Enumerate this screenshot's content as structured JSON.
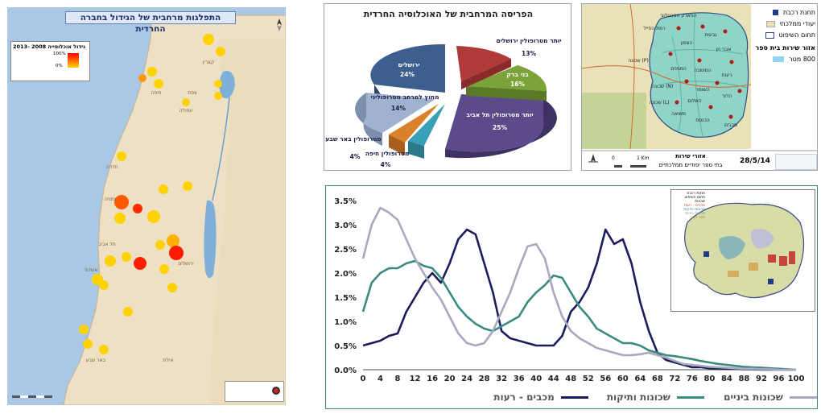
{
  "israel_map": {
    "title": "התפלגות מרחבית של הגידול בחברה החרדית",
    "legend_title": "גידול אוכלוסייה 2008 -2013",
    "legend_max": "100%",
    "legend_min": "0%",
    "cities": [
      "קצרין",
      "צפת",
      "חיפה",
      "עפולה",
      "חדרה",
      "נתניה",
      "תל אביב",
      "ירושלים",
      "אשדוד",
      "באר שבע",
      "אילת"
    ]
  },
  "pie_chart": {
    "title": "הפריסה המרחבית של האוכלוסיה החרדית",
    "slices": [
      {
        "label": "יותר מטרופולין ירושלים",
        "value": 13,
        "color": "#b03a3a"
      },
      {
        "label": "בני ברק",
        "value": 16,
        "color": "#7aa33a"
      },
      {
        "label": "יותר מטרופולין תל אביב",
        "value": 25,
        "color": "#5c4a8a"
      },
      {
        "label": "מטרופולין חיפה",
        "value": 4,
        "color": "#3aa0b8"
      },
      {
        "label": "מטרופולין באר שבע",
        "value": 4,
        "color": "#d9822b"
      },
      {
        "label": "מחוץ למרחב מטרופוליני",
        "value": 14,
        "color": "#9fb3cf"
      },
      {
        "label": "ירושלים",
        "value": 24,
        "color": "#3d5f8f"
      }
    ]
  },
  "neighborhood_map": {
    "legend": [
      {
        "label": "תחנת רכבת",
        "icon": "train-station-icon"
      },
      {
        "label": "יעודי ממלכתי",
        "icon": "state-zone-icon"
      },
      {
        "label": "תחום השיפוט",
        "icon": "jurisdiction-icon"
      },
      {
        "label": "אזור שירות בית ספר",
        "icon": "school-zone-icon"
      },
      {
        "label": "800 מטר",
        "icon": "radius-icon"
      }
    ],
    "footer_title": "אזורי שירות",
    "footer_sub": "בתי ספר יסודיים ממלכתיים",
    "date": "28/5/14",
    "scale_start": "0",
    "scale_end": "1 Km",
    "labels": [
      "הפארק הטכנולוגי",
      "רמת החייל",
      "גבעות",
      "הצפון",
      "אבני חן",
      "המושבה",
      "רעות",
      "המגינים",
      "שכונה (N)",
      "שכונה (L)",
      "שכונה (P)",
      "הדור",
      "השומר",
      "השלום",
      "משואה",
      "הכנסת",
      "מכבים"
    ]
  },
  "chart_data": {
    "type": "line",
    "x": [
      0,
      2,
      4,
      6,
      8,
      10,
      12,
      14,
      16,
      18,
      20,
      22,
      24,
      26,
      28,
      30,
      32,
      34,
      36,
      38,
      40,
      42,
      44,
      46,
      48,
      50,
      52,
      54,
      56,
      58,
      60,
      62,
      64,
      66,
      68,
      70,
      72,
      74,
      76,
      78,
      80,
      82,
      84,
      86,
      88,
      90,
      92,
      94,
      96,
      98,
      100
    ],
    "xticks": [
      "0",
      "4",
      "8",
      "12",
      "16",
      "20",
      "24",
      "28",
      "32",
      "36",
      "40",
      "44",
      "48",
      "52",
      "56",
      "60",
      "64",
      "68",
      "72",
      "76",
      "80",
      "84",
      "88",
      "92",
      "96",
      "100"
    ],
    "yticks": [
      "0.0%",
      "0.5%",
      "1.0%",
      "1.5%",
      "2.0%",
      "2.5%",
      "3.0%",
      "3.5%"
    ],
    "ylim": [
      0,
      3.5
    ],
    "xlim": [
      0,
      100
    ],
    "series": [
      {
        "name": "מכבים - רעות",
        "color": "#1c1c5c",
        "values": [
          0.5,
          0.55,
          0.6,
          0.7,
          0.75,
          1.2,
          1.5,
          1.8,
          2.0,
          1.8,
          2.2,
          2.7,
          2.9,
          2.8,
          2.2,
          1.6,
          0.8,
          0.65,
          0.6,
          0.55,
          0.5,
          0.5,
          0.5,
          0.7,
          1.2,
          1.4,
          1.7,
          2.2,
          2.9,
          2.6,
          2.7,
          2.2,
          1.4,
          0.8,
          0.35,
          0.2,
          0.15,
          0.1,
          0.05,
          0.05,
          0.03,
          0.03,
          0.02,
          0.02,
          0.01,
          0.01,
          0.0,
          0.0,
          0.0,
          0.0,
          0.0
        ]
      },
      {
        "name": "שכונות ותיקות",
        "color": "#3a8a80",
        "values": [
          1.2,
          1.8,
          2.0,
          2.1,
          2.1,
          2.2,
          2.25,
          2.15,
          2.1,
          1.9,
          1.6,
          1.3,
          1.1,
          0.95,
          0.85,
          0.8,
          0.9,
          1.0,
          1.1,
          1.4,
          1.6,
          1.75,
          1.95,
          1.9,
          1.6,
          1.3,
          1.1,
          0.85,
          0.75,
          0.65,
          0.55,
          0.55,
          0.5,
          0.4,
          0.35,
          0.3,
          0.28,
          0.25,
          0.22,
          0.18,
          0.15,
          0.12,
          0.1,
          0.08,
          0.06,
          0.05,
          0.04,
          0.03,
          0.02,
          0.01,
          0.0
        ]
      },
      {
        "name": "שכונות ביניים",
        "color": "#a8a8c0",
        "values": [
          2.3,
          3.0,
          3.35,
          3.25,
          3.1,
          2.7,
          2.3,
          2.0,
          1.7,
          1.45,
          1.1,
          0.75,
          0.55,
          0.5,
          0.55,
          0.8,
          1.2,
          1.6,
          2.1,
          2.55,
          2.6,
          2.3,
          1.6,
          1.1,
          0.8,
          0.65,
          0.55,
          0.45,
          0.4,
          0.35,
          0.3,
          0.3,
          0.32,
          0.35,
          0.3,
          0.25,
          0.18,
          0.12,
          0.1,
          0.08,
          0.06,
          0.05,
          0.04,
          0.03,
          0.02,
          0.02,
          0.01,
          0.01,
          0.0,
          0.0,
          0.0
        ]
      }
    ]
  },
  "inset_map": {
    "legend": [
      "תחנת רכבת",
      "תחום השיפוט",
      "שכונות",
      "מכבים - רעות",
      "שכונות ותיקות",
      "שכונות ביניים",
      "אזור אחר"
    ]
  }
}
